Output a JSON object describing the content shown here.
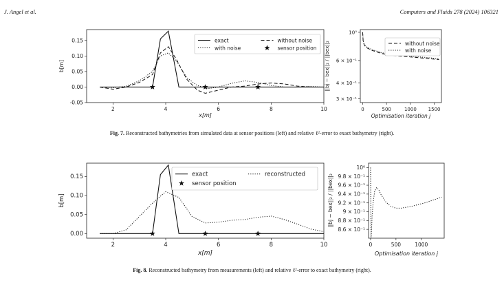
{
  "header": {
    "left": "J. Angel et al.",
    "right": "Computers and Fluids 278 (2024) 106321"
  },
  "figures": [
    {
      "label": "Fig. 7.",
      "caption": "Reconstructed bathymetries from simulated data at sensor positions (left) and relative ℓ²-error to exact bathymetry (right)."
    },
    {
      "label": "Fig. 8.",
      "caption": "Reconstructed bathymetry from measurements (left) and relative ℓ²-error to exact bathymetry (right)."
    }
  ],
  "chart_data": [
    {
      "type": "line",
      "xlabel": "x[m]",
      "ylabel": "b[m]",
      "xlim": [
        1,
        10
      ],
      "ylim": [
        -0.05,
        0.185
      ],
      "xticks": [
        2,
        4,
        6,
        8,
        10
      ],
      "yticks": [
        -0.05,
        0.0,
        0.05,
        0.1,
        0.15
      ],
      "legend": "top-right",
      "series": [
        {
          "name": "exact",
          "style": "solid",
          "x": [
            1.5,
            3.5,
            3.8,
            4.1,
            4.5,
            10
          ],
          "y": [
            0,
            0,
            0.155,
            0.18,
            0,
            0
          ]
        },
        {
          "name": "without noise",
          "style": "dashed",
          "x": [
            1.5,
            2,
            2.5,
            3,
            3.5,
            3.8,
            4.1,
            4.4,
            4.8,
            5.2,
            5.5,
            6,
            6.5,
            7,
            7.5,
            8,
            8.5,
            9,
            9.5,
            10
          ],
          "y": [
            0,
            -0.007,
            0,
            0.015,
            0.04,
            0.11,
            0.13,
            0.09,
            0.025,
            -0.01,
            -0.02,
            -0.01,
            0,
            0.003,
            0.01,
            0.013,
            0.01,
            0.003,
            0,
            0
          ]
        },
        {
          "name": "with noise",
          "style": "dotted",
          "x": [
            1.5,
            2,
            2.5,
            3,
            3.5,
            3.8,
            4.1,
            4.4,
            4.8,
            5.2,
            5.6,
            6,
            6.5,
            7,
            7.5,
            8,
            8.5,
            9,
            9.5,
            10
          ],
          "y": [
            0,
            -0.002,
            0.003,
            0.02,
            0.05,
            0.1,
            0.11,
            0.085,
            0.03,
            0.005,
            -0.005,
            0,
            0.012,
            0.02,
            0.015,
            0.005,
            0,
            0,
            0.002,
            0
          ]
        },
        {
          "name": "sensor position",
          "style": "marker",
          "x": [
            3.5,
            5.5,
            7.5
          ],
          "y": [
            0,
            0,
            0
          ]
        }
      ]
    },
    {
      "type": "line",
      "xlabel": "Optimisation iteration j",
      "ylabel": "||bj − bex||₂ / ||bex||₂",
      "xlim": [
        -50,
        1650
      ],
      "log_y": true,
      "ylim": [
        0.28,
        1.05
      ],
      "xticks": [
        0,
        500,
        1000,
        1500
      ],
      "yticks": [
        1.0,
        0.6,
        0.4,
        0.3
      ],
      "ytick_labels": [
        "10⁰",
        "6 × 10⁻¹",
        "4 × 10⁻¹",
        "3 × 10⁻¹"
      ],
      "legend": "top-right",
      "series": [
        {
          "name": "without noise",
          "style": "dashed",
          "x": [
            0,
            10,
            30,
            60,
            100,
            200,
            300,
            400,
            600,
            800,
            1000,
            1200,
            1400,
            1600
          ],
          "y": [
            1.0,
            0.85,
            0.8,
            0.77,
            0.75,
            0.72,
            0.7,
            0.68,
            0.66,
            0.65,
            0.64,
            0.63,
            0.62,
            0.61
          ]
        },
        {
          "name": "with noise",
          "style": "dotted",
          "x": [
            0,
            10,
            30,
            60,
            100,
            200,
            300,
            400,
            600,
            800,
            1000,
            1200,
            1400,
            1600
          ],
          "y": [
            1.0,
            0.86,
            0.81,
            0.78,
            0.76,
            0.73,
            0.71,
            0.69,
            0.67,
            0.66,
            0.65,
            0.64,
            0.63,
            0.62
          ]
        }
      ]
    },
    {
      "type": "line",
      "xlabel": "x[m]",
      "ylabel": "b[m]",
      "xlim": [
        1,
        10
      ],
      "ylim": [
        -0.012,
        0.185
      ],
      "xticks": [
        2,
        4,
        6,
        8,
        10
      ],
      "yticks": [
        0.0,
        0.05,
        0.1,
        0.15
      ],
      "legend": "top-right",
      "series": [
        {
          "name": "exact",
          "style": "solid",
          "x": [
            1.5,
            3.5,
            3.8,
            4.1,
            4.5,
            10
          ],
          "y": [
            0,
            0,
            0.155,
            0.18,
            0,
            0
          ]
        },
        {
          "name": "reconstructed",
          "style": "dotted",
          "x": [
            1.5,
            2,
            2.5,
            3,
            3.5,
            4,
            4.5,
            5,
            5.5,
            6,
            6.5,
            7,
            7.5,
            8,
            8.5,
            9,
            9.5,
            10
          ],
          "y": [
            0,
            0,
            0.01,
            0.045,
            0.08,
            0.11,
            0.095,
            0.045,
            0.028,
            0.03,
            0.035,
            0.037,
            0.043,
            0.046,
            0.037,
            0.025,
            0.012,
            0.005
          ]
        },
        {
          "name": "sensor position",
          "style": "marker",
          "x": [
            3.5,
            5.5,
            7.5
          ],
          "y": [
            0,
            0,
            0
          ]
        }
      ]
    },
    {
      "type": "line",
      "xlabel": "Optimisation iteration j",
      "ylabel": "||bj − bex||₂ / ||bex||₂",
      "xlim": [
        -40,
        1450
      ],
      "ylim": [
        0.84,
        1.01
      ],
      "xticks": [
        0,
        500,
        1000
      ],
      "yticks": [
        1.0,
        0.98,
        0.96,
        0.94,
        0.92,
        0.9,
        0.88,
        0.86
      ],
      "ytick_labels": [
        "10⁰",
        "9.8 × 10⁻¹",
        "9.6 × 10⁻¹",
        "9.4 × 10⁻¹",
        "9.2 × 10⁻¹",
        "9 × 10⁻¹",
        "8.8 × 10⁻¹",
        "8.6 × 10⁻¹"
      ],
      "series": [
        {
          "name": "",
          "style": "dotted",
          "x": [
            0,
            10,
            20,
            30,
            50,
            80,
            120,
            160,
            200,
            300,
            400,
            500,
            600,
            700,
            800,
            900,
            1000,
            1100,
            1200,
            1300,
            1400
          ],
          "y": [
            1.0,
            0.84,
            0.86,
            0.89,
            0.92,
            0.946,
            0.955,
            0.95,
            0.94,
            0.922,
            0.912,
            0.908,
            0.908,
            0.91,
            0.912,
            0.915,
            0.918,
            0.921,
            0.925,
            0.929,
            0.933
          ]
        }
      ]
    }
  ]
}
